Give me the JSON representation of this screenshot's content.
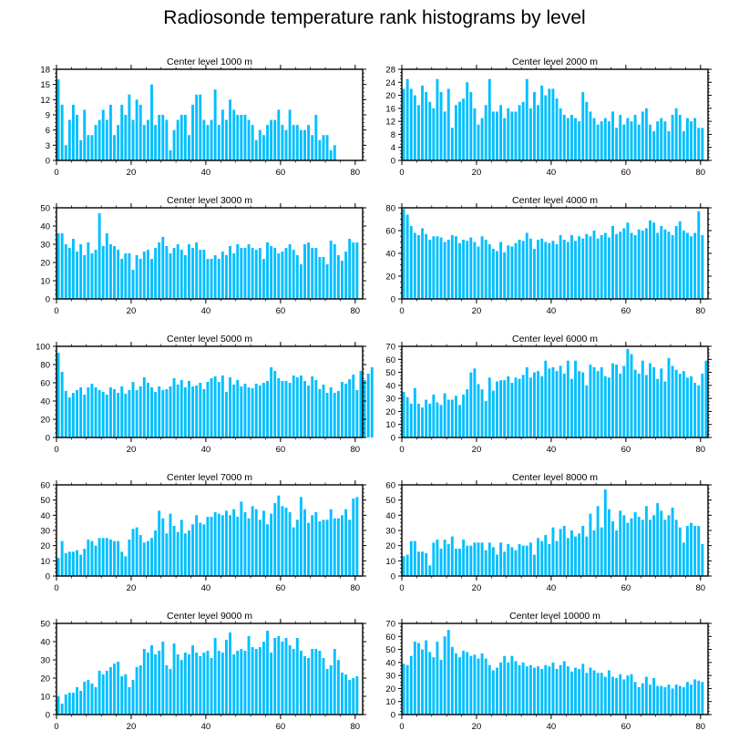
{
  "figure": {
    "title": "Radiosonde temperature rank histograms by level"
  },
  "style": {
    "bar_color": "#00BFFF",
    "axis_color": "#000000",
    "background": "#FFFFFF"
  },
  "chart_data": [
    {
      "type": "bar",
      "title": "Center level 1000 m",
      "xlabel": "",
      "ylabel": "",
      "xlim": [
        0,
        82
      ],
      "ylim": [
        0,
        18
      ],
      "yticks": [
        0,
        3,
        6,
        9,
        12,
        15,
        18
      ],
      "xticks": [
        0,
        20,
        40,
        60,
        80
      ],
      "ytick_labels": [
        "0",
        "3",
        "6",
        "9",
        "12",
        "15",
        "18"
      ],
      "xtick_labels": [
        "0",
        "20",
        "40",
        "60",
        "80"
      ],
      "values": [
        16,
        11,
        3,
        8,
        11,
        9,
        4,
        10,
        5,
        5,
        7,
        8,
        10,
        8,
        11,
        5,
        7,
        11,
        9,
        13,
        8,
        12,
        11,
        7,
        8,
        15,
        7,
        9,
        9,
        8,
        2,
        6,
        8,
        9,
        9,
        5,
        11,
        13,
        13,
        8,
        7,
        8,
        14,
        7,
        10,
        8,
        12,
        10,
        9,
        9,
        9,
        8,
        7,
        4,
        6,
        5,
        7,
        8,
        8,
        10,
        7,
        6,
        10,
        7,
        7,
        6,
        6,
        7,
        5,
        9,
        4,
        5,
        5,
        2,
        3
      ]
    },
    {
      "type": "bar",
      "title": "Center level 2000 m",
      "xlabel": "",
      "ylabel": "",
      "xlim": [
        0,
        82
      ],
      "ylim": [
        0,
        28
      ],
      "yticks": [
        0,
        4,
        8,
        12,
        16,
        20,
        24,
        28
      ],
      "xticks": [
        0,
        20,
        40,
        60,
        80
      ],
      "ytick_labels": [
        "0",
        "4",
        "8",
        "12",
        "16",
        "20",
        "24",
        "28"
      ],
      "xtick_labels": [
        "0",
        "20",
        "40",
        "60",
        "80"
      ],
      "values": [
        22,
        25,
        22,
        20,
        17,
        23,
        21,
        18,
        16,
        25,
        21,
        15,
        22,
        10,
        17,
        18,
        19,
        24,
        21,
        16,
        11,
        13,
        17,
        25,
        15,
        15,
        17,
        13,
        16,
        15,
        15,
        17,
        18,
        25,
        16,
        21,
        17,
        23,
        20,
        22,
        22,
        19,
        16,
        14,
        13,
        14,
        13,
        12,
        21,
        18,
        15,
        13,
        11,
        12,
        13,
        12,
        15,
        10,
        14,
        11,
        13,
        12,
        14,
        11,
        15,
        16,
        11,
        9,
        12,
        13,
        12,
        9,
        14,
        16,
        14,
        9,
        13,
        12,
        13,
        10,
        10
      ]
    },
    {
      "type": "bar",
      "title": "Center level 3000 m",
      "xlabel": "",
      "ylabel": "",
      "xlim": [
        0,
        82
      ],
      "ylim": [
        0,
        50
      ],
      "yticks": [
        0,
        10,
        20,
        30,
        40,
        50
      ],
      "xticks": [
        0,
        20,
        40,
        60,
        80
      ],
      "ytick_labels": [
        "0",
        "10",
        "20",
        "30",
        "40",
        "50"
      ],
      "xtick_labels": [
        "0",
        "20",
        "40",
        "60",
        "80"
      ],
      "values": [
        36,
        36,
        30,
        28,
        33,
        26,
        30,
        24,
        31,
        25,
        27,
        47,
        29,
        36,
        30,
        29,
        27,
        22,
        25,
        25,
        16,
        24,
        22,
        26,
        27,
        22,
        28,
        31,
        34,
        29,
        25,
        28,
        30,
        27,
        24,
        30,
        28,
        31,
        27,
        27,
        22,
        22,
        24,
        22,
        26,
        24,
        29,
        25,
        30,
        28,
        28,
        30,
        28,
        27,
        28,
        22,
        31,
        29,
        28,
        25,
        26,
        28,
        30,
        27,
        24,
        19,
        30,
        31,
        28,
        28,
        23,
        23,
        19,
        32,
        30,
        24,
        21,
        26,
        33,
        31,
        31
      ]
    },
    {
      "type": "bar",
      "title": "Center level 4000 m",
      "xlabel": "",
      "ylabel": "",
      "xlim": [
        0,
        82
      ],
      "ylim": [
        0,
        80
      ],
      "yticks": [
        0,
        20,
        40,
        60,
        80
      ],
      "xticks": [
        0,
        20,
        40,
        60,
        80
      ],
      "ytick_labels": [
        "0",
        "20",
        "40",
        "60",
        "80"
      ],
      "xtick_labels": [
        "0",
        "20",
        "40",
        "60",
        "80"
      ],
      "values": [
        79,
        74,
        64,
        58,
        56,
        62,
        57,
        52,
        55,
        55,
        54,
        50,
        52,
        56,
        55,
        49,
        52,
        51,
        54,
        50,
        46,
        55,
        52,
        48,
        44,
        42,
        50,
        41,
        47,
        46,
        49,
        52,
        51,
        58,
        53,
        44,
        52,
        53,
        50,
        49,
        51,
        48,
        56,
        52,
        50,
        56,
        51,
        55,
        53,
        57,
        55,
        60,
        53,
        56,
        58,
        54,
        64,
        57,
        59,
        62,
        67,
        58,
        56,
        61,
        60,
        62,
        69,
        67,
        58,
        64,
        61,
        59,
        56,
        64,
        68,
        60,
        58,
        55,
        58,
        77,
        56
      ]
    },
    {
      "type": "bar",
      "title": "Center level 5000 m",
      "xlabel": "",
      "ylabel": "",
      "xlim": [
        0,
        82
      ],
      "ylim": [
        0,
        100
      ],
      "yticks": [
        0,
        20,
        40,
        60,
        80,
        100
      ],
      "xticks": [
        0,
        20,
        40,
        60,
        80
      ],
      "ytick_labels": [
        "0",
        "20",
        "40",
        "60",
        "80",
        "100"
      ],
      "xtick_labels": [
        "0",
        "20",
        "40",
        "60",
        "80"
      ],
      "values": [
        93,
        72,
        51,
        44,
        49,
        52,
        55,
        47,
        55,
        59,
        55,
        52,
        50,
        47,
        55,
        53,
        49,
        56,
        48,
        52,
        61,
        52,
        56,
        66,
        60,
        55,
        50,
        56,
        52,
        53,
        56,
        65,
        58,
        63,
        55,
        62,
        56,
        57,
        60,
        53,
        61,
        65,
        67,
        61,
        68,
        50,
        66,
        58,
        63,
        56,
        59,
        55,
        54,
        59,
        57,
        60,
        62,
        77,
        73,
        65,
        62,
        62,
        60,
        68,
        66,
        68,
        62,
        57,
        67,
        63,
        53,
        58,
        49,
        55,
        49,
        51,
        61,
        59,
        64,
        69,
        52,
        73,
        63,
        70,
        77
      ]
    },
    {
      "type": "bar",
      "title": "Center level 6000 m",
      "xlabel": "",
      "ylabel": "",
      "xlim": [
        0,
        82
      ],
      "ylim": [
        0,
        70
      ],
      "yticks": [
        0,
        10,
        20,
        30,
        40,
        50,
        60,
        70
      ],
      "xticks": [
        0,
        20,
        40,
        60,
        80
      ],
      "ytick_labels": [
        "0",
        "10",
        "20",
        "30",
        "40",
        "50",
        "60",
        "70"
      ],
      "xtick_labels": [
        "0",
        "20",
        "40",
        "60",
        "80"
      ],
      "values": [
        35,
        31,
        26,
        38,
        26,
        23,
        29,
        26,
        33,
        27,
        25,
        34,
        29,
        29,
        32,
        25,
        33,
        37,
        50,
        53,
        41,
        37,
        28,
        46,
        36,
        43,
        44,
        44,
        47,
        42,
        46,
        45,
        48,
        54,
        46,
        50,
        51,
        47,
        59,
        53,
        54,
        51,
        55,
        49,
        59,
        45,
        59,
        51,
        50,
        40,
        56,
        54,
        51,
        54,
        47,
        46,
        57,
        56,
        49,
        55,
        68,
        64,
        52,
        49,
        59,
        48,
        57,
        54,
        45,
        53,
        43,
        61,
        55,
        52,
        49,
        51,
        46,
        47,
        42,
        40,
        49,
        59
      ]
    },
    {
      "type": "bar",
      "title": "Center level 7000 m",
      "xlabel": "",
      "ylabel": "",
      "xlim": [
        0,
        82
      ],
      "ylim": [
        0,
        60
      ],
      "yticks": [
        0,
        10,
        20,
        30,
        40,
        50,
        60
      ],
      "xticks": [
        0,
        20,
        40,
        60,
        80
      ],
      "ytick_labels": [
        "0",
        "10",
        "20",
        "30",
        "40",
        "50",
        "60"
      ],
      "xtick_labels": [
        "0",
        "20",
        "40",
        "60",
        "80"
      ],
      "values": [
        12,
        23,
        15,
        16,
        16,
        17,
        14,
        18,
        24,
        23,
        20,
        25,
        25,
        25,
        24,
        23,
        23,
        16,
        13,
        24,
        31,
        32,
        27,
        22,
        23,
        25,
        30,
        43,
        38,
        28,
        41,
        33,
        29,
        37,
        28,
        30,
        34,
        40,
        35,
        34,
        39,
        39,
        42,
        41,
        40,
        43,
        40,
        44,
        39,
        49,
        42,
        38,
        46,
        44,
        37,
        43,
        34,
        41,
        48,
        53,
        46,
        45,
        42,
        32,
        37,
        52,
        44,
        35,
        40,
        42,
        36,
        37,
        37,
        44,
        38,
        38,
        40,
        44,
        37,
        51,
        52
      ]
    },
    {
      "type": "bar",
      "title": "Center level 8000 m",
      "xlabel": "",
      "ylabel": "",
      "xlim": [
        0,
        82
      ],
      "ylim": [
        0,
        60
      ],
      "yticks": [
        0,
        10,
        20,
        30,
        40,
        50,
        60
      ],
      "xticks": [
        0,
        20,
        40,
        60,
        80
      ],
      "ytick_labels": [
        "0",
        "10",
        "20",
        "30",
        "40",
        "50",
        "60"
      ],
      "xtick_labels": [
        "0",
        "20",
        "40",
        "60",
        "80"
      ],
      "values": [
        13,
        14,
        23,
        23,
        16,
        16,
        15,
        7,
        22,
        24,
        18,
        24,
        21,
        26,
        18,
        18,
        24,
        20,
        20,
        22,
        22,
        22,
        17,
        22,
        19,
        14,
        22,
        16,
        21,
        19,
        17,
        21,
        20,
        20,
        22,
        14,
        25,
        23,
        27,
        21,
        32,
        23,
        31,
        33,
        25,
        30,
        26,
        28,
        33,
        26,
        41,
        30,
        46,
        32,
        57,
        44,
        36,
        30,
        43,
        40,
        35,
        38,
        42,
        39,
        37,
        46,
        37,
        40,
        48,
        43,
        37,
        40,
        45,
        37,
        32,
        22,
        33,
        35,
        33,
        33,
        21
      ]
    },
    {
      "type": "bar",
      "title": "Center level 9000 m",
      "xlabel": "",
      "ylabel": "",
      "xlim": [
        0,
        82
      ],
      "ylim": [
        0,
        50
      ],
      "yticks": [
        0,
        10,
        20,
        30,
        40,
        50
      ],
      "xticks": [
        0,
        20,
        40,
        60,
        80
      ],
      "ytick_labels": [
        "0",
        "10",
        "20",
        "30",
        "40",
        "50"
      ],
      "xtick_labels": [
        "0",
        "20",
        "40",
        "60",
        "80"
      ],
      "values": [
        10,
        6,
        11,
        12,
        12,
        15,
        13,
        18,
        19,
        17,
        15,
        24,
        22,
        24,
        26,
        28,
        29,
        21,
        22,
        15,
        19,
        26,
        27,
        36,
        34,
        38,
        33,
        35,
        40,
        27,
        25,
        39,
        33,
        30,
        34,
        33,
        38,
        34,
        32,
        34,
        35,
        31,
        42,
        35,
        34,
        41,
        45,
        33,
        35,
        36,
        35,
        43,
        37,
        36,
        37,
        40,
        46,
        34,
        42,
        43,
        40,
        42,
        38,
        36,
        42,
        35,
        32,
        31,
        36,
        36,
        35,
        31,
        25,
        27,
        36,
        30,
        23,
        22,
        19,
        20,
        21
      ]
    },
    {
      "type": "bar",
      "title": "Center level 10000 m",
      "xlabel": "",
      "ylabel": "",
      "xlim": [
        0,
        82
      ],
      "ylim": [
        0,
        70
      ],
      "yticks": [
        0,
        10,
        20,
        30,
        40,
        50,
        60,
        70
      ],
      "xticks": [
        0,
        20,
        40,
        60,
        80
      ],
      "ytick_labels": [
        "0",
        "10",
        "20",
        "30",
        "40",
        "50",
        "60",
        "70"
      ],
      "xtick_labels": [
        "0",
        "20",
        "40",
        "60",
        "80"
      ],
      "values": [
        39,
        38,
        45,
        56,
        55,
        50,
        57,
        48,
        44,
        56,
        42,
        60,
        65,
        52,
        47,
        44,
        49,
        48,
        45,
        46,
        43,
        47,
        43,
        38,
        34,
        36,
        40,
        45,
        40,
        45,
        41,
        38,
        40,
        37,
        38,
        36,
        37,
        35,
        38,
        37,
        40,
        35,
        38,
        41,
        37,
        33,
        36,
        35,
        39,
        32,
        36,
        34,
        32,
        32,
        29,
        34,
        29,
        28,
        31,
        27,
        30,
        31,
        25,
        21,
        24,
        29,
        23,
        28,
        22,
        22,
        21,
        23,
        20,
        23,
        22,
        21,
        25,
        23,
        27,
        26,
        25
      ]
    }
  ]
}
